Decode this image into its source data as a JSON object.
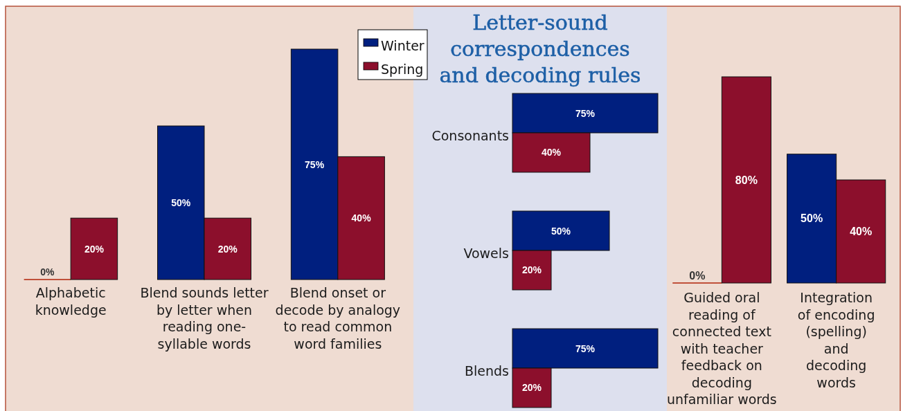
{
  "chart_data": [
    {
      "type": "bar",
      "categories": [
        "Alphabetic\nknowledge",
        "Blend sounds letter\nby letter when\nreading one-\nsyllable words",
        "Blend onset or\ndecode by analogy\nto read common\nword families"
      ],
      "series": [
        {
          "name": "Winter",
          "color": "#001f7f",
          "colors": [
            "#c0503a",
            "#001f7f",
            "#001f7f"
          ],
          "values": [
            0,
            50,
            75
          ],
          "value_labels": [
            "0%",
            "50%",
            "75%"
          ]
        },
        {
          "name": "Spring",
          "color": "#8c0f2c",
          "values": [
            20,
            20,
            40
          ],
          "value_labels": [
            "20%",
            "20%",
            "40%"
          ]
        }
      ],
      "legend": "top right"
    },
    {
      "type": "bar",
      "orientation": "horizontal",
      "title": "Letter-sound\ncorrespondences\nand decoding rules",
      "categories": [
        "Consonants",
        "Vowels",
        "Blends"
      ],
      "series": [
        {
          "color": "#001f7f",
          "values": [
            75,
            50,
            75
          ],
          "value_labels": [
            "75%",
            "50%",
            "75%"
          ]
        },
        {
          "color": "#8c0f2c",
          "values": [
            40,
            20,
            20
          ],
          "value_labels": [
            "40%",
            "20%",
            "20%"
          ]
        }
      ]
    },
    {
      "type": "bar",
      "categories": [
        "Guided oral\nreading of\nconnected text\nwith teacher\nfeedback on\ndecoding\nunfamiliar words",
        "Integration\nof encoding\n(spelling)\nand\ndecoding\nwords"
      ],
      "series": [
        {
          "colors": [
            "#c0503a",
            "#001f7f"
          ],
          "values": [
            0,
            50
          ],
          "value_labels": [
            "0%",
            "50%"
          ]
        },
        {
          "color": "#8c0f2c",
          "values": [
            80,
            40
          ],
          "value_labels": [
            "80%",
            "40%"
          ]
        }
      ]
    }
  ]
}
